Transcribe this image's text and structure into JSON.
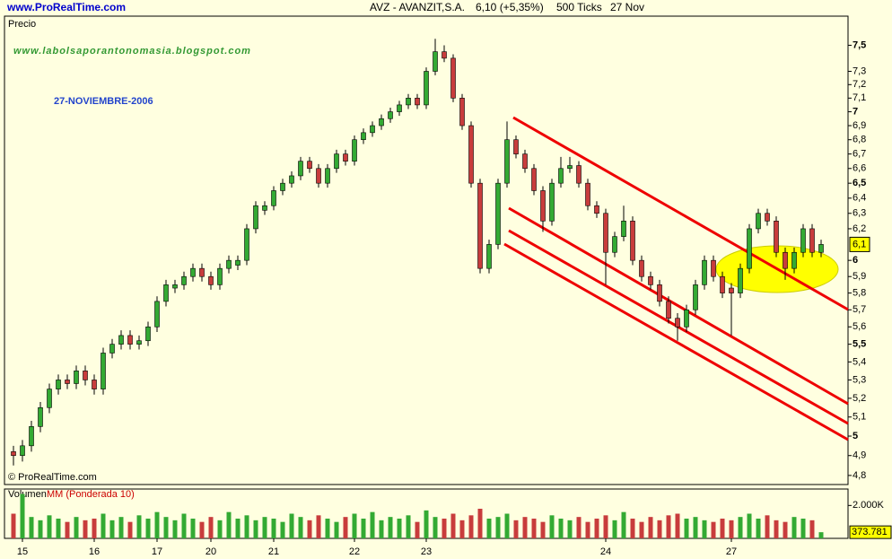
{
  "chart_data": {
    "type": "candlestick",
    "header": {
      "site": "www.ProRealTime.com",
      "symbol": "AVZ - AVANZIT,S.A.",
      "quote": "6,10 (+5,35%)",
      "ticks": "500 Ticks",
      "date": "27 Nov"
    },
    "panel_title": "Precio",
    "copyright": "© ProRealTime.com",
    "annotations": [
      "www.labolsaporantonomasia.blogspot.com",
      "27-NOVIEMBRE-2006"
    ],
    "log": true,
    "grid": false,
    "up_color": "#33aa33",
    "down_color": "#c83c3c",
    "categories": [
      null,
      "15",
      null,
      null,
      null,
      null,
      null,
      null,
      null,
      "16",
      null,
      null,
      null,
      null,
      null,
      null,
      "17",
      null,
      null,
      null,
      null,
      null,
      "20",
      null,
      null,
      null,
      null,
      null,
      null,
      "21",
      null,
      null,
      null,
      null,
      null,
      null,
      null,
      null,
      "22",
      null,
      null,
      null,
      null,
      null,
      null,
      null,
      "23",
      null,
      null,
      null,
      null,
      null,
      null,
      null,
      null,
      null,
      null,
      null,
      null,
      null,
      null,
      null,
      null,
      null,
      null,
      null,
      "24",
      null,
      null,
      null,
      null,
      null,
      null,
      null,
      null,
      null,
      null,
      null,
      null,
      null,
      "27",
      null,
      null,
      null,
      null,
      null,
      null,
      null,
      null,
      null,
      null
    ],
    "open": [
      4.92,
      4.9,
      4.95,
      5.05,
      5.15,
      5.25,
      5.3,
      5.28,
      5.35,
      5.3,
      5.25,
      5.45,
      5.5,
      5.55,
      5.5,
      5.52,
      5.6,
      5.75,
      5.83,
      5.85,
      5.9,
      5.95,
      5.9,
      5.85,
      5.95,
      5.97,
      6.0,
      6.2,
      6.32,
      6.35,
      6.45,
      6.5,
      6.55,
      6.65,
      6.6,
      6.5,
      6.6,
      6.7,
      6.65,
      6.8,
      6.85,
      6.9,
      6.95,
      7.0,
      7.05,
      7.1,
      7.05,
      7.3,
      7.45,
      7.4,
      7.1,
      6.9,
      6.5,
      5.95,
      6.1,
      6.5,
      6.8,
      6.7,
      6.6,
      6.45,
      6.25,
      6.5,
      6.6,
      6.62,
      6.5,
      6.35,
      6.3,
      6.05,
      6.15,
      6.25,
      6.0,
      5.9,
      5.85,
      5.75,
      5.65,
      5.6,
      5.7,
      5.85,
      6.0,
      5.9,
      5.83,
      5.8,
      5.95,
      6.2,
      6.3,
      6.25,
      6.05,
      5.95,
      6.05,
      6.2,
      6.05
    ],
    "high": [
      4.95,
      4.98,
      5.08,
      5.18,
      5.28,
      5.33,
      5.33,
      5.38,
      5.38,
      5.33,
      5.48,
      5.53,
      5.58,
      5.58,
      5.55,
      5.63,
      5.78,
      5.88,
      5.88,
      5.93,
      5.98,
      5.98,
      5.93,
      5.98,
      6.03,
      6.03,
      6.23,
      6.38,
      6.38,
      6.48,
      6.53,
      6.58,
      6.68,
      6.68,
      6.63,
      6.63,
      6.73,
      6.73,
      6.83,
      6.88,
      6.93,
      6.98,
      7.03,
      7.08,
      7.13,
      7.13,
      7.33,
      7.55,
      7.5,
      7.43,
      7.13,
      6.93,
      6.53,
      6.13,
      6.53,
      6.93,
      6.83,
      6.73,
      6.63,
      6.48,
      6.53,
      6.68,
      6.68,
      6.65,
      6.53,
      6.38,
      6.33,
      6.18,
      6.35,
      6.28,
      6.03,
      5.93,
      5.88,
      5.78,
      5.68,
      5.73,
      5.88,
      6.03,
      6.03,
      5.93,
      5.86,
      5.98,
      6.23,
      6.33,
      6.33,
      6.28,
      6.08,
      6.08,
      6.23,
      6.23,
      6.13
    ],
    "low": [
      4.85,
      4.87,
      4.92,
      5.02,
      5.12,
      5.22,
      5.25,
      5.25,
      5.27,
      5.22,
      5.22,
      5.42,
      5.47,
      5.47,
      5.47,
      5.49,
      5.57,
      5.72,
      5.8,
      5.82,
      5.87,
      5.87,
      5.82,
      5.82,
      5.92,
      5.94,
      5.97,
      6.17,
      6.29,
      6.32,
      6.42,
      6.47,
      6.52,
      6.57,
      6.47,
      6.47,
      6.57,
      6.62,
      6.62,
      6.77,
      6.82,
      6.87,
      6.92,
      6.97,
      7.02,
      7.02,
      7.02,
      7.27,
      7.37,
      7.07,
      6.87,
      6.47,
      5.92,
      5.92,
      6.07,
      6.47,
      6.67,
      6.57,
      6.42,
      6.18,
      6.22,
      6.47,
      6.57,
      6.47,
      6.32,
      6.27,
      5.85,
      6.02,
      6.12,
      5.97,
      5.87,
      5.82,
      5.72,
      5.62,
      5.52,
      5.57,
      5.67,
      5.82,
      5.87,
      5.77,
      5.55,
      5.77,
      5.92,
      6.17,
      6.22,
      6.02,
      5.88,
      5.92,
      6.02,
      6.02,
      6.02
    ],
    "close": [
      4.9,
      4.95,
      5.05,
      5.15,
      5.25,
      5.3,
      5.28,
      5.35,
      5.3,
      5.25,
      5.45,
      5.5,
      5.55,
      5.5,
      5.52,
      5.6,
      5.75,
      5.85,
      5.85,
      5.9,
      5.95,
      5.9,
      5.85,
      5.95,
      6.0,
      6.0,
      6.2,
      6.35,
      6.35,
      6.45,
      6.5,
      6.55,
      6.65,
      6.6,
      6.5,
      6.6,
      6.7,
      6.65,
      6.8,
      6.85,
      6.9,
      6.95,
      7.0,
      7.05,
      7.1,
      7.05,
      7.3,
      7.45,
      7.4,
      7.1,
      6.9,
      6.5,
      5.95,
      6.1,
      6.5,
      6.8,
      6.7,
      6.6,
      6.45,
      6.25,
      6.5,
      6.6,
      6.62,
      6.5,
      6.35,
      6.3,
      6.05,
      6.15,
      6.25,
      6.0,
      5.9,
      5.85,
      5.75,
      5.65,
      5.6,
      5.7,
      5.85,
      6.0,
      5.9,
      5.8,
      5.8,
      5.95,
      6.2,
      6.3,
      6.25,
      6.05,
      5.95,
      6.05,
      6.2,
      6.05,
      6.1
    ],
    "ylim": [
      4.755,
      7.73
    ],
    "yticks": [
      {
        "value": 4.8,
        "label": "4,8"
      },
      {
        "value": 4.9,
        "label": "4,9"
      },
      5,
      {
        "value": 5.1,
        "label": "5,1"
      },
      {
        "value": 5.2,
        "label": "5,2"
      },
      {
        "value": 5.3,
        "label": "5,3"
      },
      {
        "value": 5.4,
        "label": "5,4"
      },
      {
        "value": 5.5,
        "label": "5,5"
      },
      {
        "value": 5.6,
        "label": "5,6"
      },
      {
        "value": 5.7,
        "label": "5,7"
      },
      {
        "value": 5.8,
        "label": "5,8"
      },
      {
        "value": 5.9,
        "label": "5,9"
      },
      6,
      {
        "value": 6.2,
        "label": "6,2"
      },
      {
        "value": 6.3,
        "label": "6,3"
      },
      {
        "value": 6.4,
        "label": "6,4"
      },
      {
        "value": 6.5,
        "label": "6,5"
      },
      {
        "value": 6.6,
        "label": "6,6"
      },
      {
        "value": 6.7,
        "label": "6,7"
      },
      {
        "value": 6.8,
        "label": "6,8"
      },
      {
        "value": 6.9,
        "label": "6,9"
      },
      7,
      {
        "value": 7.1,
        "label": "7,1"
      },
      {
        "value": 7.2,
        "label": "7,2"
      },
      {
        "value": 7.3,
        "label": "7,3"
      },
      {
        "value": 7.5,
        "label": "7,5"
      }
    ],
    "last_price": {
      "value": 6.1,
      "label": "6,1"
    },
    "volume": {
      "title": "Volumen",
      "subtitle": "MM (Ponderada 10)",
      "values": [
        1500000,
        2700000,
        1300000,
        1100000,
        1400000,
        1200000,
        1000000,
        1300000,
        1100000,
        1200000,
        1500000,
        1100000,
        1300000,
        1000000,
        1400000,
        1200000,
        1600000,
        1300000,
        1100000,
        1500000,
        1200000,
        1000000,
        1300000,
        1100000,
        1600000,
        1200000,
        1400000,
        1100000,
        1300000,
        1200000,
        1000000,
        1500000,
        1300000,
        1100000,
        1400000,
        1200000,
        1000000,
        1300000,
        1500000,
        1200000,
        1600000,
        1100000,
        1300000,
        1200000,
        1400000,
        1000000,
        1700000,
        1300000,
        1200000,
        1500000,
        1100000,
        1400000,
        1800000,
        1200000,
        1300000,
        1500000,
        1100000,
        1300000,
        1200000,
        1000000,
        1400000,
        1200000,
        1100000,
        1300000,
        1000000,
        1200000,
        1400000,
        1100000,
        1600000,
        1200000,
        1000000,
        1300000,
        1100000,
        1400000,
        1500000,
        1200000,
        1300000,
        1100000,
        1000000,
        1200000,
        1100000,
        1300000,
        1500000,
        1200000,
        1400000,
        1100000,
        1000000,
        1300000,
        1200000,
        1100000,
        373781
      ],
      "last_label": "373.781",
      "ylim": [
        0,
        3000000
      ],
      "yticks": [
        {
          "value": 2000000,
          "label": "2.000K"
        }
      ]
    }
  }
}
